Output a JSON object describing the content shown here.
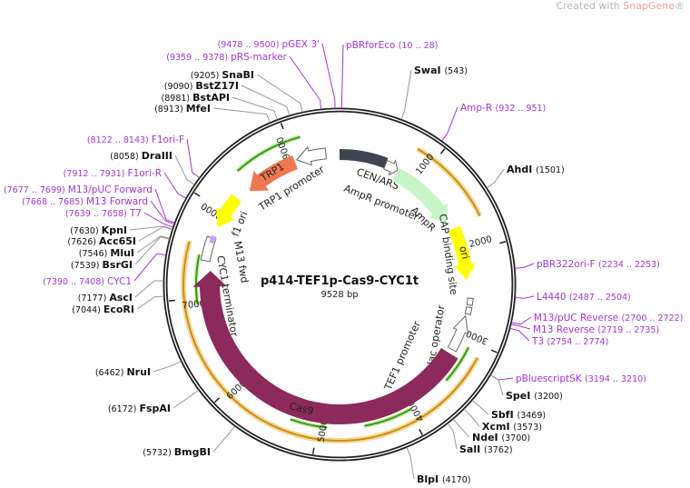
{
  "watermark": {
    "prefix": "Created with ",
    "brand": "SnapGene",
    "suffix": "®"
  },
  "plasmid": {
    "name": "p414-TEF1p-Cas9-CYC1t",
    "length_label": "9528 bp",
    "length": 9528
  },
  "colors": {
    "backbone": "#222222",
    "primer": "#a335d8",
    "cas9": "#8c2a5c",
    "trp1": "#f07850",
    "ori": "#ffff00",
    "ampr": "#c8f5c8",
    "cen_ars": "#3c4650",
    "orf_orange": "#c8901e",
    "orf_green": "#3c9628"
  },
  "ticks": [
    1000,
    2000,
    3000,
    4000,
    5000,
    6000,
    7000,
    8000,
    9000
  ],
  "sites": [
    {
      "type": "primer",
      "range": "(9478 .. 9500)",
      "name": "pGEX 3'",
      "pos": 9489
    },
    {
      "type": "primer",
      "range": "(9359 .. 9378)",
      "name": "pRS-marker",
      "pos": 9368
    },
    {
      "type": "enzyme",
      "range": "(9205)",
      "name": "SnaBI",
      "pos": 9205
    },
    {
      "type": "enzyme",
      "range": "(9090)",
      "name": "BstZ17I",
      "pos": 9090
    },
    {
      "type": "enzyme",
      "range": "(8981)",
      "name": "BstAPI",
      "pos": 8981
    },
    {
      "type": "enzyme",
      "range": "(8913)",
      "name": "MfeI",
      "pos": 8913
    },
    {
      "type": "primer",
      "range": "(8122 .. 8143)",
      "name": "F1ori-F",
      "pos": 8132
    },
    {
      "type": "enzyme",
      "range": "(8058)",
      "name": "DraIII",
      "pos": 8058
    },
    {
      "type": "primer",
      "range": "(7912 .. 7931)",
      "name": "F1ori-R",
      "pos": 7921
    },
    {
      "type": "primer",
      "range": "(7677 .. 7699)",
      "name": "M13/pUC Forward",
      "pos": 7688
    },
    {
      "type": "primer",
      "range": "(7668 .. 7685)",
      "name": "M13 Forward",
      "pos": 7676
    },
    {
      "type": "primer",
      "range": "(7639 .. 7658)",
      "name": "T7",
      "pos": 7648
    },
    {
      "type": "enzyme",
      "range": "(7630)",
      "name": "KpnI",
      "pos": 7630
    },
    {
      "type": "enzyme",
      "range": "(7626)",
      "name": "Acc65I",
      "pos": 7626
    },
    {
      "type": "enzyme",
      "range": "(7546)",
      "name": "MluI",
      "pos": 7546
    },
    {
      "type": "enzyme",
      "range": "(7539)",
      "name": "BsrGI",
      "pos": 7539
    },
    {
      "type": "primer",
      "range": "(7390 .. 7408)",
      "name": "CYC1",
      "pos": 7399
    },
    {
      "type": "enzyme",
      "range": "(7177)",
      "name": "AscI",
      "pos": 7177
    },
    {
      "type": "enzyme",
      "range": "(7044)",
      "name": "EcoRI",
      "pos": 7044
    },
    {
      "type": "enzyme",
      "range": "(6462)",
      "name": "NruI",
      "pos": 6462
    },
    {
      "type": "enzyme",
      "range": "(6172)",
      "name": "FspAI",
      "pos": 6172
    },
    {
      "type": "enzyme",
      "range": "(5732)",
      "name": "BmgBI",
      "pos": 5732
    },
    {
      "type": "primer",
      "range": "(10 .. 28)",
      "name": "pBRforEco",
      "pos": 19
    },
    {
      "type": "enzyme",
      "range": "(543)",
      "name": "SwaI",
      "pos": 543
    },
    {
      "type": "primer",
      "range": "(932 .. 951)",
      "name": "Amp-R",
      "pos": 941
    },
    {
      "type": "enzyme",
      "range": "(1501)",
      "name": "AhdI",
      "pos": 1501
    },
    {
      "type": "primer",
      "range": "(2234 .. 2253)",
      "name": "pBR322ori-F",
      "pos": 2243
    },
    {
      "type": "primer",
      "range": "(2487 .. 2504)",
      "name": "L4440",
      "pos": 2495
    },
    {
      "type": "primer",
      "range": "(2700 .. 2722)",
      "name": "M13/pUC Reverse",
      "pos": 2711
    },
    {
      "type": "primer",
      "range": "(2719 .. 2735)",
      "name": "M13 Reverse",
      "pos": 2727
    },
    {
      "type": "primer",
      "range": "(2754 .. 2774)",
      "name": "T3",
      "pos": 2764
    },
    {
      "type": "primer",
      "range": "(3194 .. 3210)",
      "name": "pBluescriptSK",
      "pos": 3202
    },
    {
      "type": "enzyme",
      "range": "(3200)",
      "name": "SpeI",
      "pos": 3200
    },
    {
      "type": "enzyme",
      "range": "(3469)",
      "name": "SbfI",
      "pos": 3469
    },
    {
      "type": "enzyme",
      "range": "(3573)",
      "name": "XcmI",
      "pos": 3573
    },
    {
      "type": "enzyme",
      "range": "(3700)",
      "name": "NdeI",
      "pos": 3700
    },
    {
      "type": "enzyme",
      "range": "(3762)",
      "name": "SalI",
      "pos": 3762
    },
    {
      "type": "enzyme",
      "range": "(4170)",
      "name": "BlpI",
      "pos": 4170
    }
  ],
  "features": [
    {
      "name": "CEN/ARS",
      "color": "#3c4650",
      "arrow": "none"
    },
    {
      "name": "AmpR promoter",
      "color": "#ffffff",
      "arrow": "cw"
    },
    {
      "name": "AmpR",
      "color": "#c8f5c8",
      "arrow": "cw"
    },
    {
      "name": "ori",
      "color": "#ffff00",
      "arrow": "cw"
    },
    {
      "name": "CAP binding site",
      "color": "#ffffff",
      "arrow": "none"
    },
    {
      "name": "lac operator",
      "color": "#ffffff",
      "arrow": "none"
    },
    {
      "name": "TEF1 promoter",
      "color": "#ffffff",
      "arrow": "ccw"
    },
    {
      "name": "Cas9",
      "color": "#8c2a5c",
      "arrow": "cw"
    },
    {
      "name": "CYC1 terminator",
      "color": "#ffffff",
      "arrow": "none"
    },
    {
      "name": "M13 fwd",
      "color": "#c8a0f0",
      "arrow": "none"
    },
    {
      "name": "f1 ori",
      "color": "#ffff00",
      "arrow": "ccw"
    },
    {
      "name": "TRP1",
      "color": "#f07850",
      "arrow": "ccw"
    },
    {
      "name": "TRP1 promoter",
      "color": "#ffffff",
      "arrow": "ccw"
    }
  ]
}
